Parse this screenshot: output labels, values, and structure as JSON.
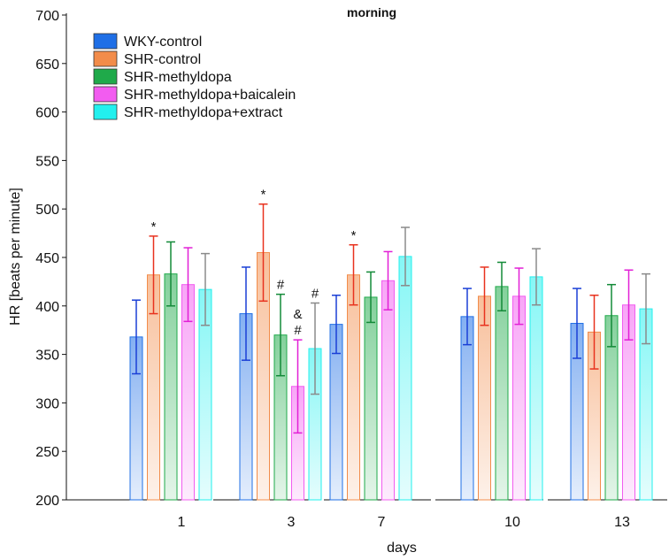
{
  "chart_data": {
    "type": "bar",
    "title": "morning",
    "xlabel": "days",
    "ylabel": "HR [beats per minute]",
    "ylim": [
      200,
      700
    ],
    "yticks": [
      200,
      250,
      300,
      350,
      400,
      450,
      500,
      550,
      600,
      650,
      700
    ],
    "categories": [
      "1",
      "3",
      "7",
      "10",
      "13"
    ],
    "grid": false,
    "legend_position": "top-left",
    "error_bars": true,
    "series": [
      {
        "name": "WKY-control",
        "color": "#1f6fe6",
        "error_color": "#1a3fd6",
        "values": [
          368,
          392,
          381,
          389,
          382
        ],
        "errors": [
          38,
          48,
          30,
          29,
          36
        ]
      },
      {
        "name": "SHR-control",
        "color": "#f28c4a",
        "error_color": "#e8321e",
        "values": [
          432,
          455,
          432,
          410,
          373
        ],
        "errors": [
          40,
          50,
          31,
          30,
          38
        ]
      },
      {
        "name": "SHR-methyldopa",
        "color": "#1faa4a",
        "error_color": "#138a38",
        "values": [
          433,
          370,
          409,
          420,
          390
        ],
        "errors": [
          33,
          42,
          26,
          25,
          32
        ]
      },
      {
        "name": "SHR-methyldopa+baicalein",
        "color": "#f25cf0",
        "error_color": "#e21fd6",
        "values": [
          422,
          317,
          426,
          410,
          401
        ],
        "errors": [
          38,
          48,
          30,
          29,
          36
        ]
      },
      {
        "name": "SHR-methyldopa+extract",
        "color": "#22f0ee",
        "error_color": "#8a8a8a",
        "values": [
          417,
          356,
          451,
          430,
          397
        ],
        "errors": [
          37,
          47,
          30,
          29,
          36
        ]
      }
    ],
    "annotations": [
      {
        "text": "*",
        "category": "1",
        "series": 1
      },
      {
        "text": "*",
        "category": "3",
        "series": 1
      },
      {
        "text": "#",
        "category": "3",
        "series": 2
      },
      {
        "text": "&",
        "category": "3",
        "series": 3,
        "stack": 1
      },
      {
        "text": "#",
        "category": "3",
        "series": 3,
        "stack": 0
      },
      {
        "text": "#",
        "category": "3",
        "series": 4
      },
      {
        "text": "*",
        "category": "7",
        "series": 1
      }
    ]
  }
}
